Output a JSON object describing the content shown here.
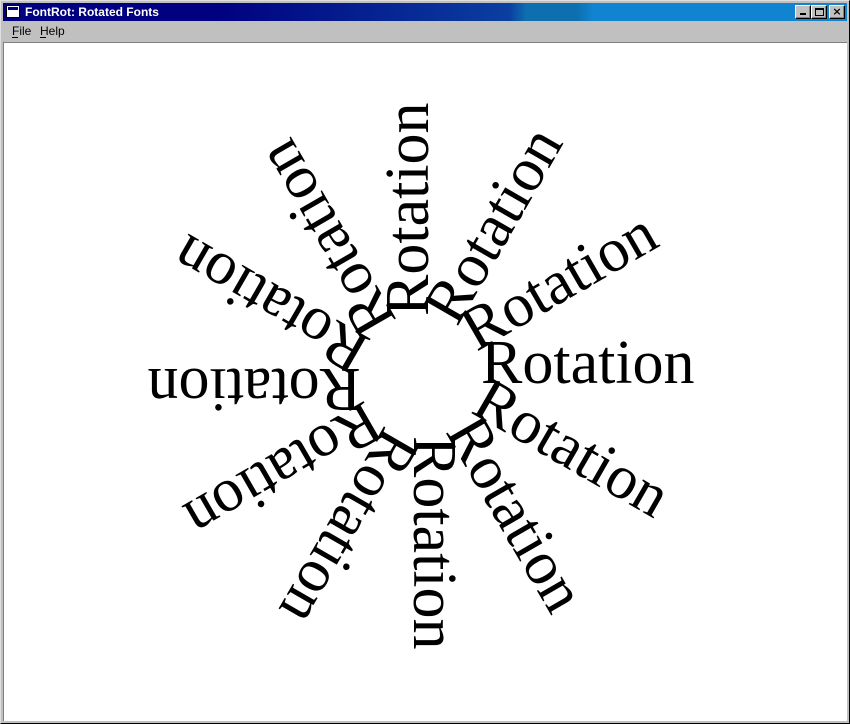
{
  "window": {
    "title": "FontRot: Rotated Fonts",
    "minimize_label": "_",
    "maximize_label": "□",
    "close_label": "×"
  },
  "menu": {
    "items": [
      {
        "label": "File"
      },
      {
        "label": "Help"
      }
    ]
  },
  "content": {
    "word": "Rotation",
    "angles_deg": [
      0,
      30,
      60,
      90,
      120,
      150,
      180,
      210,
      240,
      270,
      300,
      330
    ]
  },
  "colors": {
    "title_active": "#000080",
    "title_gradient_end": "#1084d0",
    "face": "#c0c0c0",
    "client": "#ffffff",
    "text": "#000000"
  }
}
